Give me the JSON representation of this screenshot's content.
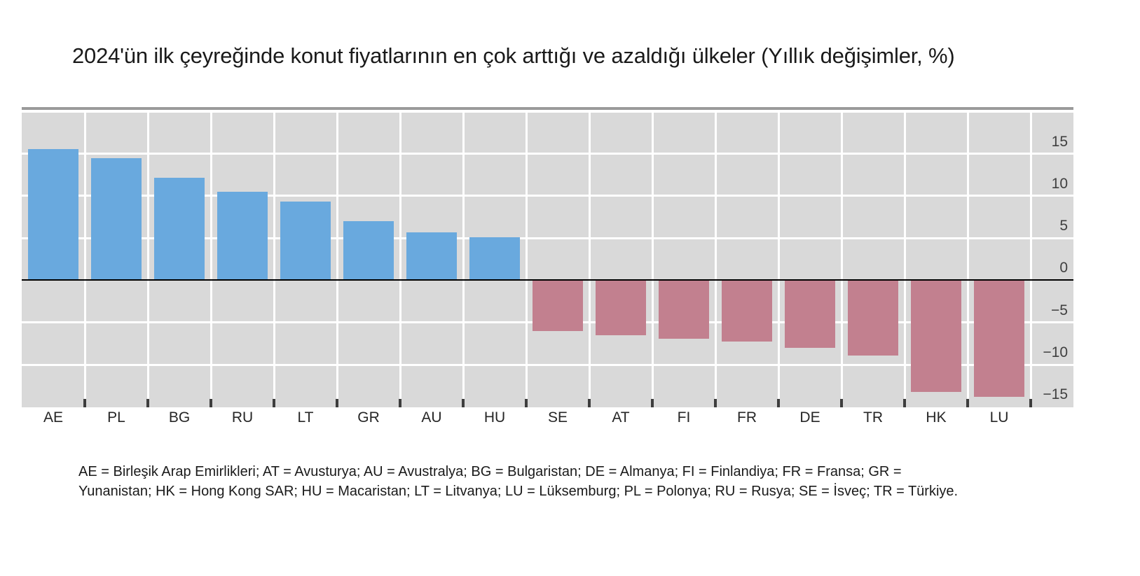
{
  "title": "2024'ün ilk çeyreğinde konut fiyatlarının en çok arttığı ve azaldığı ülkeler (Yıllık değişimler, %)",
  "footnote": {
    "line1": "AE = Birleşik Arap Emirlikleri; AT = Avusturya; AU = Avustralya; BG = Bulgaristan; DE = Almanya; FI = Finlandiya; FR = Fransa; GR =",
    "line2": "Yunanistan; HK = Hong Kong SAR; HU = Macaristan; LT = Litvanya; LU = Lüksemburg; PL = Polonya; RU = Rusya; SE = İsveç; TR = Türkiye."
  },
  "chart_data": {
    "type": "bar",
    "title": "2024'ün ilk çeyreğinde konut fiyatlarının en çok arttığı ve azaldığı ülkeler (Yıllık değişimler, %)",
    "categories": [
      "AE",
      "PL",
      "BG",
      "RU",
      "LT",
      "GR",
      "AU",
      "HU",
      "SE",
      "AT",
      "FI",
      "FR",
      "DE",
      "TR",
      "HK",
      "LU"
    ],
    "values": [
      15.5,
      14.5,
      12.1,
      10.5,
      9.3,
      7.0,
      5.7,
      5.1,
      -6.0,
      -6.5,
      -6.9,
      -7.3,
      -8.0,
      -8.9,
      -13.2,
      -13.8
    ],
    "xlabel": "",
    "ylabel": "",
    "ylim": [
      -15.05,
      19.85
    ],
    "yticks": [
      15,
      10,
      5,
      0,
      -5,
      -10,
      -15
    ],
    "ytick_labels": [
      "15",
      "10",
      "5",
      "0",
      "−5",
      "−10",
      "−15"
    ],
    "grid": true,
    "legend": false,
    "legend_position": "none",
    "colors": {
      "positive_bar": "#69a9de",
      "negative_bar": "#c2808f",
      "plot_background": "#d9d9d9",
      "gridline": "#ffffff",
      "zero_line": "#000000",
      "top_border": "#9a9a9a",
      "boundary_tick": "#3d3d3d",
      "y_axis_text": "#404040",
      "x_axis_text": "#262626",
      "title_text": "#1a1a1a"
    }
  }
}
